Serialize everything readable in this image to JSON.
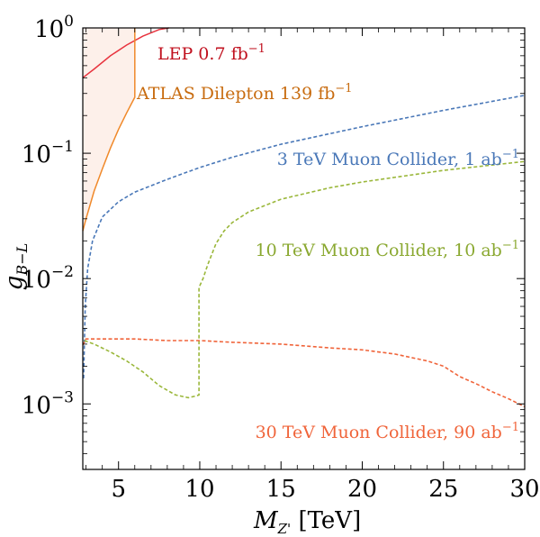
{
  "chart_data": {
    "type": "line",
    "title": "",
    "xlabel": {
      "symbol": "M",
      "subscript": "Z'",
      "unit": "[TeV]"
    },
    "ylabel": {
      "symbol": "g",
      "subscript": "B−L"
    },
    "xlim": [
      2.8,
      30
    ],
    "ylim": [
      0.0003,
      1
    ],
    "yscale": "log",
    "xticks": [
      5,
      10,
      15,
      20,
      25,
      30
    ],
    "xtick_labels": [
      "5",
      "10",
      "15",
      "20",
      "25",
      "30"
    ],
    "yticks": [
      {
        "value": 1,
        "base": "10",
        "exp": "0"
      },
      {
        "value": 0.1,
        "base": "10",
        "exp": "−1"
      },
      {
        "value": 0.01,
        "base": "10",
        "exp": "−2"
      },
      {
        "value": 0.001,
        "base": "10",
        "exp": "−3"
      }
    ],
    "series": [
      {
        "name": "LEP 0.7 fb−1",
        "label_main": "LEP 0.7 fb",
        "label_sup": "−1",
        "color": "#e8343f",
        "style": "solid",
        "x": [
          2.8,
          3.5,
          4.5,
          5.5,
          6.5,
          7.5,
          8.1
        ],
        "y": [
          0.4,
          0.47,
          0.6,
          0.73,
          0.86,
          0.97,
          1.0
        ]
      },
      {
        "name": "ATLAS Dilepton 139 fb−1",
        "label_main": "ATLAS Dilepton 139 fb",
        "label_sup": "−1",
        "color": "#f0892a",
        "style": "solid",
        "x": [
          2.8,
          3.0,
          3.5,
          4.0,
          4.5,
          5.0,
          5.5,
          6.0,
          6.0
        ],
        "y": [
          0.024,
          0.03,
          0.05,
          0.075,
          0.11,
          0.155,
          0.21,
          0.28,
          1.0
        ]
      },
      {
        "name": "3 TeV Muon Collider, 1 ab−1",
        "label_main": "3 TeV Muon Collider, 1 ab",
        "label_sup": "−1",
        "color": "#4a78b8",
        "style": "dashed",
        "x": [
          2.85,
          2.95,
          3.1,
          3.4,
          4,
          5,
          6,
          8,
          10,
          12,
          15,
          20,
          25,
          30
        ],
        "y": [
          0.0016,
          0.006,
          0.012,
          0.02,
          0.031,
          0.041,
          0.049,
          0.062,
          0.077,
          0.093,
          0.118,
          0.163,
          0.22,
          0.29
        ]
      },
      {
        "name": "10 TeV Muon Collider, 10 ab−1",
        "label_main": "10 TeV Muon Collider, 10 ab",
        "label_sup": "−1",
        "color": "#9ab73a",
        "style": "dashed",
        "x": [
          2.9,
          3.5,
          4.5,
          5.5,
          6.5,
          7.5,
          8.5,
          9.3,
          9.8,
          9.95,
          9.95,
          10.2,
          10.5,
          11.0,
          11.5,
          12,
          13,
          15,
          18,
          20,
          25,
          30
        ],
        "y": [
          0.0032,
          0.003,
          0.0026,
          0.0022,
          0.0018,
          0.0014,
          0.00118,
          0.00112,
          0.00116,
          0.00118,
          0.0085,
          0.01,
          0.013,
          0.019,
          0.024,
          0.028,
          0.034,
          0.043,
          0.053,
          0.059,
          0.073,
          0.086
        ]
      },
      {
        "name": "30 TeV Muon Collider, 90 ab−1",
        "label_main": "30 TeV Muon Collider, 90 ab",
        "label_sup": "−1",
        "color": "#f0643a",
        "style": "dashed",
        "x": [
          2.8,
          3.0,
          4,
          6,
          8,
          10,
          12,
          15,
          18,
          20,
          22,
          24,
          25,
          26,
          27,
          28,
          29,
          30
        ],
        "y": [
          0.00295,
          0.0033,
          0.0033,
          0.0033,
          0.0032,
          0.0032,
          0.0031,
          0.003,
          0.0028,
          0.0027,
          0.0025,
          0.0022,
          0.002,
          0.00165,
          0.00145,
          0.00125,
          0.0011,
          0.00095
        ]
      }
    ],
    "excluded_region": {
      "color": "#fdf0ea",
      "description": "excluded region bounded by LEP and ATLAS curves"
    }
  }
}
